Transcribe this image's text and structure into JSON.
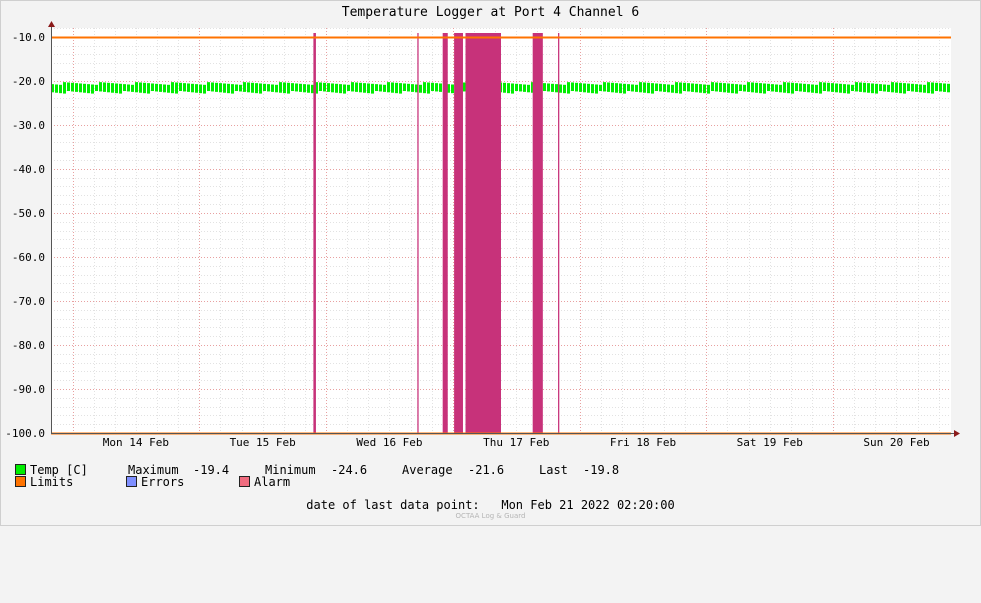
{
  "chart_data": {
    "type": "area",
    "title": "Temperature Logger at Port 4 Channel 6",
    "ylim": [
      -100,
      -8
    ],
    "yticks": [
      -10,
      -20,
      -30,
      -40,
      -50,
      -60,
      -70,
      -80,
      -90,
      -100
    ],
    "ytick_labels": [
      "-10.0",
      "-20.0",
      "-30.0",
      "-40.0",
      "-50.0",
      "-60.0",
      "-70.0",
      "-80.0",
      "-90.0",
      "-100.0"
    ],
    "xlim": [
      -0.17,
      6.93
    ],
    "xticks": [
      0,
      1,
      2,
      3,
      4,
      5,
      6
    ],
    "xtick_labels": [
      "Mon 14 Feb",
      "Tue 15 Feb",
      "Wed 16 Feb",
      "Thu 17 Feb",
      "Fri 18 Feb",
      "Sat 19 Feb",
      "Sun 20 Feb"
    ],
    "x_unit": "days from Mon 14 Feb 00:00",
    "grid": true,
    "series": [
      {
        "name": "Temp [C]",
        "color": "#00ee00",
        "kind": "band",
        "typical_low": -22.9,
        "typical_high": -20.3,
        "value_range": [
          -24.6,
          -19.4
        ]
      },
      {
        "name": "Limits",
        "color": "#ff7300",
        "kind": "hline",
        "values": [
          -10,
          -100
        ]
      },
      {
        "name": "Alarm",
        "color": "#c7327a",
        "kind": "intervals",
        "intervals": [
          [
            1.9,
            1.92
          ],
          [
            2.72,
            2.73
          ],
          [
            2.92,
            2.96
          ],
          [
            3.01,
            3.08
          ],
          [
            3.1,
            3.38
          ],
          [
            3.63,
            3.71
          ],
          [
            3.83,
            3.84
          ]
        ]
      },
      {
        "name": "Errors",
        "color": "#7f8fff",
        "kind": "intervals",
        "intervals": []
      }
    ]
  },
  "legend": {
    "temp": {
      "label": "Temp [C]",
      "color": "#00ee00"
    },
    "limits": {
      "label": "Limits",
      "color": "#ff7300"
    },
    "errors": {
      "label": "Errors",
      "color": "#7f8fff"
    },
    "alarm": {
      "label": "Alarm",
      "color": "#f06c7f"
    },
    "stats": {
      "max_label": "Maximum",
      "max_value": "-19.4",
      "min_label": "Minimum",
      "min_value": "-24.6",
      "avg_label": "Average",
      "avg_value": "-21.6",
      "last_label": "Last",
      "last_value": "-19.8"
    }
  },
  "footer": {
    "label": "date of last data point:",
    "value": "Mon Feb 21 2022 02:20:00"
  },
  "watermark": "OCTAA Log & Guard"
}
